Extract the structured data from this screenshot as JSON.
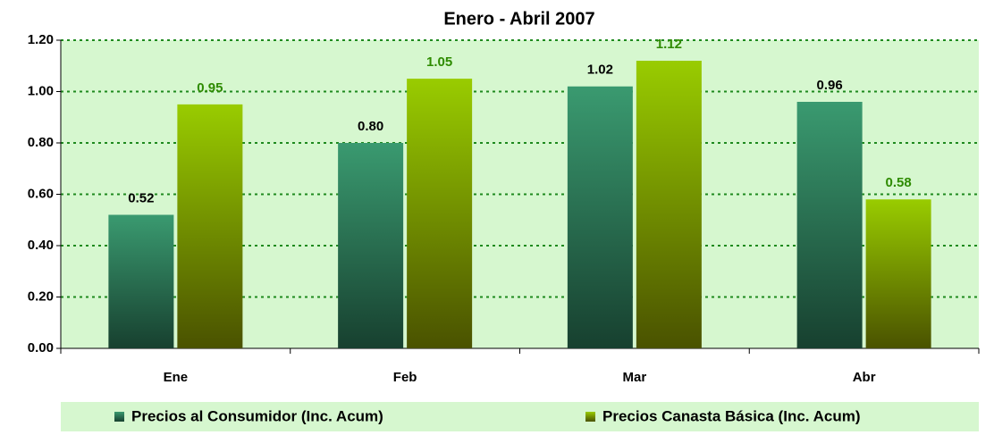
{
  "chart_data": {
    "type": "bar",
    "title": "Enero - Abril 2007",
    "categories": [
      "Ene",
      "Feb",
      "Mar",
      "Abr"
    ],
    "series": [
      {
        "name": "Precios al Consumidor (Inc. Acum)",
        "color": "#3a9a70",
        "values": [
          0.52,
          0.8,
          1.02,
          0.96
        ],
        "value_labels": [
          "0.52",
          "0.80",
          "1.02",
          "0.96"
        ]
      },
      {
        "name": "Precios Canasta Básica (Inc. Acum)",
        "color": "#99cc00",
        "values": [
          0.95,
          1.05,
          1.12,
          0.58
        ],
        "value_labels": [
          "0.95",
          "1.05",
          "1.12",
          "0.58"
        ]
      }
    ],
    "ylim": [
      0,
      1.2
    ],
    "yticks": [
      {
        "value": 0,
        "label": "0.00"
      },
      {
        "value": 0.2,
        "label": "0.20"
      },
      {
        "value": 0.4,
        "label": "0.40"
      },
      {
        "value": 0.6,
        "label": "0.60"
      },
      {
        "value": 0.8,
        "label": "0.80"
      },
      {
        "value": 1.0,
        "label": "1.00"
      },
      {
        "value": 1.2,
        "label": "1.20"
      }
    ],
    "grid": true,
    "legend": "bottom"
  }
}
